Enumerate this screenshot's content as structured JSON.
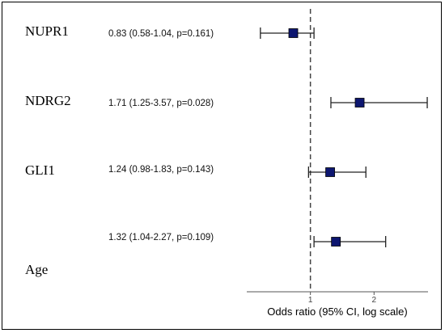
{
  "chart_data": {
    "type": "forest",
    "rows": [
      {
        "name": "NUPR1",
        "or": 0.83,
        "lo": 0.58,
        "hi": 1.04,
        "label": "0.83 (0.58-1.04, p=0.161)"
      },
      {
        "name": "NDRG2",
        "or": 1.71,
        "lo": 1.25,
        "hi": 3.57,
        "label": "1.71 (1.25-3.57, p=0.028)"
      },
      {
        "name": "GLI1",
        "or": 1.24,
        "lo": 0.98,
        "hi": 1.83,
        "label": "1.24 (0.98-1.83, p=0.143)"
      },
      {
        "name": "Age",
        "or": 1.32,
        "lo": 1.04,
        "hi": 2.27,
        "label": "1.32 (1.04-2.27, p=0.109)"
      }
    ],
    "x_ticks": [
      1,
      2
    ],
    "x_scale": "log",
    "xlim": [
      0.5,
      3.6
    ],
    "reference_line": 1,
    "xlabel": "Odds ratio (95% CI, log scale)",
    "marker_color": "#0d1670"
  }
}
